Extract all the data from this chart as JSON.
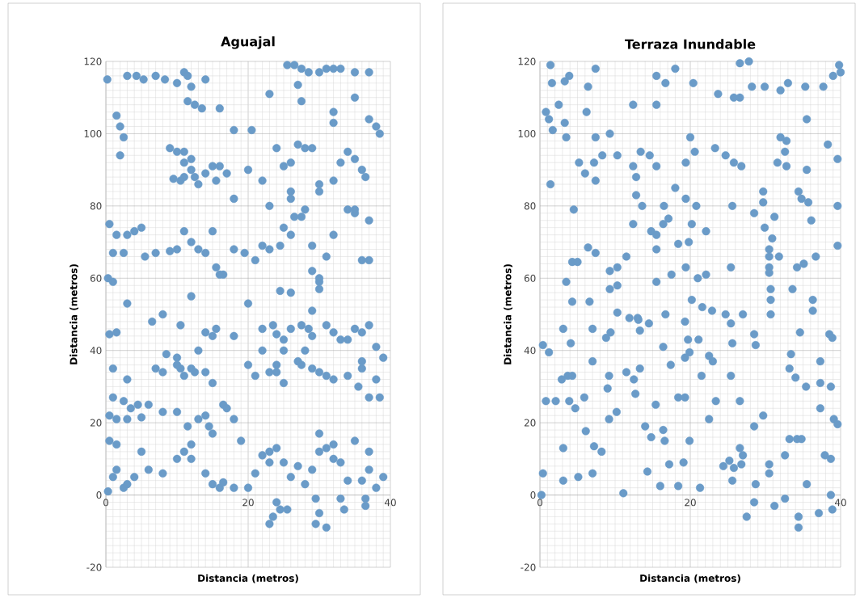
{
  "chart_data": [
    {
      "type": "scatter",
      "title": "Aguajal",
      "xlabel": "Distancia (metros)",
      "ylabel": "Distancia (metros)",
      "color": "#6a9bc8",
      "marker": "circle",
      "grid": true,
      "xlim": [
        0,
        40
      ],
      "ylim": [
        -20,
        120
      ],
      "xticks": [
        0,
        20,
        40
      ],
      "yticks": [
        -20,
        0,
        20,
        40,
        60,
        80,
        100,
        120
      ],
      "x": [
        0.2,
        1.5,
        2,
        2.5,
        2,
        3,
        4.3,
        5.3,
        7,
        8.3,
        10,
        11,
        11.5,
        12,
        11.5,
        12.5,
        13.5,
        14,
        16,
        18,
        20.5,
        23,
        25.5,
        26.5,
        27.5,
        27,
        28.5,
        30,
        31,
        32,
        33,
        35,
        37,
        35,
        37,
        38,
        38.5,
        27.5,
        32,
        32,
        9,
        10,
        11,
        12,
        11,
        12,
        12.5,
        11,
        10.5,
        9.5,
        13,
        14,
        15,
        16,
        15.5,
        17,
        18,
        20,
        22,
        23,
        24,
        25,
        26,
        27,
        28,
        29,
        30,
        30,
        32,
        33,
        34,
        35,
        36,
        36.5,
        28,
        26,
        26,
        34,
        35,
        37,
        0.5,
        1.5,
        3,
        4,
        5,
        1,
        2.5,
        5.5,
        7,
        9,
        10,
        11,
        12,
        13,
        14,
        15,
        15.5,
        16,
        16.5,
        18,
        19.5,
        21,
        22,
        23,
        24.5,
        25,
        26,
        26.5,
        27.5,
        29,
        30,
        31,
        32,
        35,
        36,
        37,
        0.3,
        1,
        24.5,
        29,
        30,
        3,
        0.5,
        1.5,
        6.5,
        8,
        10.5,
        12,
        14,
        15,
        15.5,
        18,
        20,
        22,
        23.5,
        24,
        26,
        27.5,
        28.5,
        29,
        31,
        32,
        33,
        35,
        36,
        37,
        26,
        29,
        30,
        1,
        3,
        1,
        2.5,
        4.5,
        5,
        0.5,
        1.5,
        3,
        7,
        8,
        8.5,
        10,
        10.5,
        11,
        12,
        12.5,
        14,
        15,
        10,
        13,
        16.5,
        17,
        18,
        14,
        14.5,
        15,
        13,
        11.5,
        10,
        8,
        6,
        3.5,
        20,
        21,
        23,
        24,
        25,
        27,
        27.5,
        29,
        30,
        31,
        32,
        34,
        35.5,
        36,
        38,
        37,
        38.5,
        36,
        25,
        25,
        24,
        28,
        34,
        38,
        39,
        22,
        0.3,
        1,
        1.5,
        2.5,
        3,
        4,
        6,
        8,
        10,
        11,
        12,
        12,
        14,
        15,
        16,
        16.5,
        18,
        20,
        21,
        22,
        23,
        24,
        25,
        26,
        27,
        28,
        29,
        30,
        31,
        32,
        33,
        34,
        36,
        37,
        38,
        39,
        0.5,
        1.5,
        5,
        19,
        23,
        30,
        32,
        37,
        35,
        24,
        24.5,
        23.5,
        23,
        29.5,
        30,
        29.5,
        31,
        33,
        36.5,
        36.5,
        33.5,
        25.5
      ],
      "values": [
        115,
        105,
        102,
        99,
        94,
        116,
        116,
        115,
        116,
        115,
        114,
        117,
        116,
        113,
        109,
        108,
        107,
        115,
        107,
        101,
        101,
        111,
        119,
        119,
        118,
        113.5,
        117,
        117,
        118,
        118,
        118,
        117,
        117,
        110,
        104,
        102,
        100,
        109,
        106,
        103,
        96,
        95,
        95,
        93,
        92,
        90,
        88,
        88,
        87,
        87.5,
        86,
        89,
        91,
        91,
        87,
        89,
        82,
        90,
        87,
        80,
        96,
        91,
        92,
        97,
        96,
        96,
        86,
        84,
        87,
        92,
        95,
        93,
        90,
        88,
        79,
        84,
        82,
        79,
        78,
        76,
        75,
        72,
        72,
        73,
        74,
        67,
        67,
        66,
        67,
        67.5,
        68,
        73,
        70,
        68,
        67,
        73,
        63,
        61,
        61,
        68,
        67,
        65,
        69,
        68,
        69,
        74,
        72,
        77,
        77,
        69,
        60,
        66,
        72,
        79,
        65,
        65,
        60,
        59,
        56.5,
        62,
        59,
        53,
        44.5,
        45,
        48,
        50,
        47,
        55,
        45,
        44,
        46,
        44,
        53,
        46,
        47,
        44.5,
        46,
        47,
        46,
        44,
        47,
        45,
        43,
        46,
        45,
        47,
        56,
        51,
        57,
        35,
        32,
        27,
        26,
        25,
        21.5,
        22,
        21,
        21,
        35,
        34,
        39,
        38,
        35,
        33,
        35,
        34,
        34,
        31,
        36,
        40,
        25,
        24,
        21,
        22,
        19,
        17,
        21,
        19,
        23,
        23,
        25,
        24,
        36,
        33,
        34,
        34,
        31,
        37,
        36,
        35,
        34,
        33,
        32,
        33,
        30,
        35,
        32,
        27,
        27,
        37,
        40,
        43,
        36,
        40,
        43,
        41,
        38,
        40,
        1,
        5,
        7,
        2,
        3,
        5,
        7,
        6,
        10,
        12,
        14,
        10,
        6,
        3,
        2,
        3.5,
        2,
        2,
        6,
        11,
        12,
        13,
        9,
        5,
        8,
        3,
        7,
        12,
        13,
        10,
        9,
        4,
        4,
        7,
        2,
        5,
        15,
        14,
        12,
        15,
        9,
        17,
        14,
        12,
        15,
        -2,
        -4,
        -6,
        -8,
        -1,
        -5,
        -8,
        -9,
        -1,
        -1,
        -3,
        -4,
        -4
      ]
    },
    {
      "type": "scatter",
      "title": "Terraza Inundable",
      "xlabel": "Distancia (metros)",
      "ylabel": "Distancia (metros)",
      "color": "#6a9bc8",
      "marker": "circle",
      "grid": true,
      "xlim": [
        0,
        40
      ],
      "ylim": [
        -20,
        120
      ],
      "xticks": [
        0,
        20,
        40
      ],
      "yticks": [
        -20,
        0,
        20,
        40,
        60,
        80,
        100,
        120
      ],
      "x": [
        1.4,
        1.6,
        3.3,
        3.9,
        6.4,
        7.4,
        2.5,
        0.8,
        1.2,
        1.7,
        3.3,
        3.5,
        6.2,
        7.4,
        9.3,
        5.2,
        7.2,
        8.3,
        10.3,
        6,
        7.4,
        1.4,
        4.5,
        12.4,
        15.5,
        15.5,
        16.7,
        18,
        20.4,
        13.4,
        14.6,
        12.4,
        15.5,
        12.8,
        18,
        20,
        20.6,
        19.4,
        12.8,
        13.6,
        16.5,
        19.4,
        20.8,
        12.4,
        14.8,
        16.4,
        17.1,
        15.5,
        15.5,
        18.4,
        19.8,
        20.2,
        22.1,
        23.3,
        24.7,
        25.8,
        26.8,
        23.7,
        25.8,
        26.6,
        26.6,
        27.8,
        28.2,
        29.9,
        32,
        33,
        35.3,
        37.7,
        39,
        39.8,
        40,
        35.5,
        32,
        32.8,
        32.6,
        31.6,
        32.8,
        35.5,
        38.3,
        39.6,
        29.7,
        29.7,
        28.5,
        29.9,
        31.2,
        30.9,
        34.4,
        34.8,
        35.7,
        36.1,
        39.6,
        39.6,
        25.6,
        25.4,
        30.5,
        30.5,
        31.8,
        30.5,
        30.5,
        34.2,
        35.1,
        36.7,
        33.6,
        30.7,
        30.7,
        36.3,
        36.3,
        4.3,
        5,
        6.4,
        7.4,
        11.5,
        9.3,
        10.3,
        3.5,
        9.3,
        10.3,
        4.3,
        6.6,
        15.5,
        17.5,
        19.4,
        21,
        22.1,
        20.2,
        21.6,
        22.9,
        24.7,
        27,
        30.7,
        10.3,
        13,
        16.7,
        0.4,
        1.2,
        3.1,
        4.1,
        7,
        7,
        8.8,
        9.4,
        11.9,
        13.1,
        13.3,
        14.5,
        2.9,
        3.7,
        4.3,
        0.8,
        2.1,
        3.9,
        4.7,
        5.9,
        6.1,
        9.2,
        9,
        9.2,
        10.2,
        11.5,
        12.5,
        13.3,
        12.7,
        16.4,
        17.4,
        15.4,
        14,
        16.4,
        14.8,
        16.6,
        18.4,
        19.3,
        19.3,
        19.7,
        21.1,
        19.9,
        19.3,
        22.5,
        23,
        21.5,
        23.4,
        22.5,
        25.4,
        25.6,
        25.4,
        26.6,
        28.5,
        28.7,
        28.5,
        29.7,
        33.4,
        33.2,
        34,
        35.4,
        34.6,
        37.3,
        37.3,
        38.7,
        38.5,
        38.9,
        37.3,
        39.1,
        39.6,
        3.1,
        7.2,
        8.2,
        0.4,
        0.2,
        3.1,
        5.1,
        7,
        11.1,
        14.3,
        16,
        17.2,
        18.4,
        19.1,
        19.9,
        21.3,
        24.4,
        25.2,
        25.8,
        26.6,
        27,
        26.8,
        25.6,
        27.5,
        28.7,
        28.5,
        30.5,
        30.5,
        31.2,
        32.6,
        32.6,
        33.2,
        34.2,
        34.8,
        34.4,
        34.4,
        35.5,
        37.1,
        37.9,
        38.7,
        38.7,
        38.9
      ],
      "values": [
        119,
        114,
        114.5,
        116,
        113,
        118,
        108,
        106,
        104,
        101,
        103,
        99,
        106,
        99,
        100,
        92,
        92,
        94,
        94,
        89,
        87,
        86,
        79,
        108,
        108,
        116,
        114,
        118,
        114,
        95,
        94,
        91,
        91,
        88,
        85,
        99,
        95,
        92,
        83,
        80,
        80,
        82,
        80,
        75,
        73,
        75,
        76.5,
        72,
        68,
        69.5,
        70,
        75,
        73,
        96,
        94,
        92,
        91,
        111,
        110,
        110,
        119.5,
        120,
        113,
        113,
        112,
        114,
        113,
        113,
        116,
        119,
        117,
        104,
        99,
        98,
        95,
        92,
        91,
        90,
        97,
        93,
        84,
        81,
        78,
        74,
        77,
        71,
        84,
        82,
        81,
        76,
        80,
        69,
        80,
        63,
        68,
        66,
        66,
        63,
        61.5,
        63,
        64,
        66,
        57,
        57,
        54,
        54,
        51,
        64.5,
        64.5,
        68.5,
        67,
        66,
        62,
        63,
        59,
        57,
        58,
        53.5,
        53.5,
        59,
        61,
        63,
        60,
        61,
        54,
        52,
        51,
        50,
        50,
        50,
        50.5,
        49,
        50,
        41.5,
        39.5,
        46,
        42,
        37,
        46,
        43.5,
        45,
        49,
        48.5,
        45.5,
        47.5,
        32,
        33,
        33,
        26,
        26,
        26,
        24,
        27,
        17.7,
        33,
        29.5,
        21,
        23,
        34,
        32,
        35,
        28,
        41,
        36,
        25,
        19,
        18,
        16,
        15,
        27,
        27,
        48,
        43,
        43,
        39.5,
        38,
        38.5,
        37,
        33,
        26,
        21,
        47.5,
        42,
        33,
        26,
        44.5,
        41.5,
        19,
        22,
        39,
        35,
        32.5,
        30,
        45,
        37,
        31,
        30,
        44.5,
        43.5,
        24,
        21,
        19.6,
        13,
        13.5,
        12,
        6,
        0,
        4,
        5,
        6,
        0.5,
        6.5,
        2.5,
        8.5,
        2.5,
        9,
        15,
        2,
        8,
        9.5,
        7.5,
        13,
        11,
        8.5,
        4,
        -6,
        3,
        -2,
        8.5,
        6,
        -3,
        -1,
        11,
        15.5,
        15.5,
        15.5,
        -6,
        -9,
        3,
        -5,
        11,
        10,
        0,
        -4
      ]
    }
  ]
}
